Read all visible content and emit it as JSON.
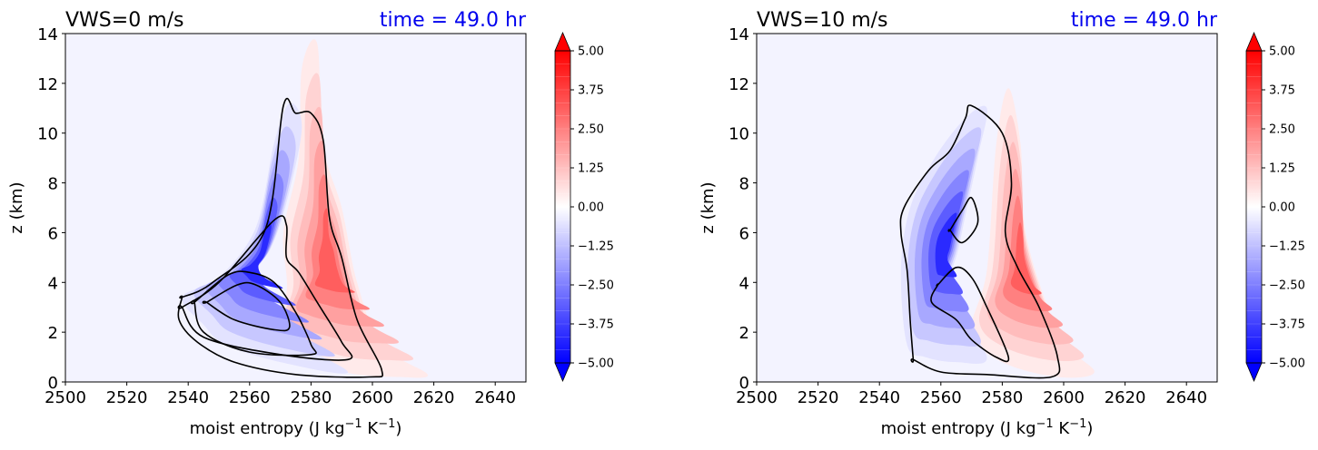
{
  "chart_data": [
    {
      "type": "contour",
      "title": "VWS=0 m/s",
      "time_label": "time = 49.0 hr",
      "xlabel": "moist entropy (J kg$^{-1}$ K$^{-1}$)",
      "xlabel_parts": [
        "moist entropy (J kg",
        "−1",
        " K",
        "−1",
        ")"
      ],
      "ylabel": "z (km)",
      "xlim": [
        2500,
        2650
      ],
      "ylim": [
        0,
        14
      ],
      "xticks": [
        "2500",
        "2520",
        "2540",
        "2560",
        "2580",
        "2600",
        "2620",
        "2640"
      ],
      "yticks": [
        "0",
        "2",
        "4",
        "6",
        "8",
        "10",
        "12",
        "14"
      ],
      "colorbar": {
        "range": [
          -5.0,
          5.0
        ],
        "extend": "both",
        "colormap": "bwr",
        "ticks": [
          "5.00",
          "3.75",
          "2.50",
          "1.25",
          "0.00",
          "−1.25",
          "−2.50",
          "−3.75",
          "−5.00"
        ]
      },
      "negative_lobe": [
        [
          2545,
          2.3
        ],
        [
          2538,
          3.4
        ],
        [
          2550,
          4.2
        ],
        [
          2562,
          6.2
        ],
        [
          2568,
          9.6
        ],
        [
          2573,
          11.2
        ],
        [
          2577,
          10.2
        ],
        [
          2572,
          7.2
        ],
        [
          2567,
          5.4
        ],
        [
          2560,
          3.9
        ],
        [
          2567,
          2.2
        ],
        [
          2592,
          0.4
        ],
        [
          2570,
          0.8
        ],
        [
          2552,
          1.5
        ]
      ],
      "positive_lobe": [
        [
          2566,
          1.6
        ],
        [
          2572,
          3.6
        ],
        [
          2571,
          6.0
        ],
        [
          2576,
          9.0
        ],
        [
          2577,
          12.6
        ],
        [
          2582,
          13.6
        ],
        [
          2584,
          9.5
        ],
        [
          2590,
          7.0
        ],
        [
          2595,
          4.0
        ],
        [
          2603,
          1.5
        ],
        [
          2618,
          0.3
        ],
        [
          2608,
          0.2
        ],
        [
          2595,
          0.3
        ],
        [
          2585,
          0.6
        ],
        [
          2574,
          1.0
        ]
      ],
      "contours": [
        [
          [
            2538,
            3.4
          ],
          [
            2548,
            4.0
          ],
          [
            2565,
            6.1
          ],
          [
            2571,
            11.1
          ],
          [
            2575,
            10.8
          ],
          [
            2580,
            10.8
          ],
          [
            2584,
            9.7
          ],
          [
            2586,
            6.6
          ],
          [
            2590,
            5.0
          ],
          [
            2595,
            2.5
          ],
          [
            2603,
            0.5
          ],
          [
            2599,
            0.2
          ],
          [
            2575,
            0.3
          ],
          [
            2555,
            0.8
          ],
          [
            2543,
            1.6
          ],
          [
            2537,
            2.5
          ],
          [
            2538,
            3.4
          ]
        ],
        [
          [
            2538,
            3.0
          ],
          [
            2550,
            4.0
          ],
          [
            2568,
            6.5
          ],
          [
            2572,
            6.3
          ],
          [
            2572,
            5.0
          ],
          [
            2576,
            4.4
          ],
          [
            2582,
            3.2
          ],
          [
            2590,
            1.6
          ],
          [
            2592,
            0.9
          ],
          [
            2570,
            1.1
          ],
          [
            2545,
            1.8
          ],
          [
            2538,
            3.0
          ]
        ],
        [
          [
            2542,
            3.2
          ],
          [
            2553,
            4.3
          ],
          [
            2560,
            4.4
          ],
          [
            2568,
            4.0
          ],
          [
            2575,
            2.8
          ],
          [
            2580,
            1.5
          ],
          [
            2580,
            1.1
          ],
          [
            2560,
            1.2
          ],
          [
            2545,
            2.0
          ],
          [
            2542,
            3.2
          ]
        ],
        [
          [
            2546,
            3.2
          ],
          [
            2556,
            3.9
          ],
          [
            2562,
            3.9
          ],
          [
            2570,
            3.2
          ],
          [
            2573,
            2.2
          ],
          [
            2568,
            2.1
          ],
          [
            2555,
            2.5
          ],
          [
            2546,
            3.2
          ]
        ]
      ]
    },
    {
      "type": "contour",
      "title": "VWS=10 m/s",
      "time_label": "time = 49.0 hr",
      "xlabel": "moist entropy (J kg$^{-1}$ K$^{-1}$)",
      "xlabel_parts": [
        "moist entropy (J kg",
        "−1",
        " K",
        "−1",
        ")"
      ],
      "ylabel": "z (km)",
      "xlim": [
        2500,
        2650
      ],
      "ylim": [
        0,
        14
      ],
      "xticks": [
        "2500",
        "2520",
        "2540",
        "2560",
        "2580",
        "2600",
        "2620",
        "2640"
      ],
      "yticks": [
        "0",
        "2",
        "4",
        "6",
        "8",
        "10",
        "12",
        "14"
      ],
      "colorbar": {
        "range": [
          -5.0,
          5.0
        ],
        "extend": "both",
        "colormap": "bwr",
        "ticks": [
          "5.00",
          "3.75",
          "2.50",
          "1.25",
          "0.00",
          "−1.25",
          "−2.50",
          "−3.75",
          "−5.00"
        ]
      },
      "negative_lobe": [
        [
          2549,
          1.5
        ],
        [
          2547,
          4.5
        ],
        [
          2550,
          7.0
        ],
        [
          2558,
          9.0
        ],
        [
          2568,
          10.6
        ],
        [
          2575,
          11.0
        ],
        [
          2572,
          9.0
        ],
        [
          2566,
          5.5
        ],
        [
          2563,
          3.5
        ],
        [
          2575,
          1.0
        ],
        [
          2565,
          0.8
        ],
        [
          2555,
          1.0
        ]
      ],
      "positive_lobe": [
        [
          2570,
          2.0
        ],
        [
          2575,
          4.5
        ],
        [
          2578,
          9.5
        ],
        [
          2582,
          11.8
        ],
        [
          2586,
          9.5
        ],
        [
          2587,
          6.5
        ],
        [
          2592,
          4.0
        ],
        [
          2600,
          1.6
        ],
        [
          2610,
          0.4
        ],
        [
          2598,
          0.2
        ],
        [
          2580,
          0.8
        ]
      ],
      "contours": [
        [
          [
            2551,
            0.9
          ],
          [
            2550,
            2.5
          ],
          [
            2549,
            4.5
          ],
          [
            2547,
            6.0
          ],
          [
            2548,
            7.0
          ],
          [
            2556,
            8.5
          ],
          [
            2563,
            9.3
          ],
          [
            2568,
            10.6
          ],
          [
            2570,
            11.1
          ],
          [
            2580,
            10.0
          ],
          [
            2583,
            8.0
          ],
          [
            2581,
            6.0
          ],
          [
            2585,
            4.6
          ],
          [
            2592,
            3.0
          ],
          [
            2598,
            1.0
          ],
          [
            2596,
            0.2
          ],
          [
            2575,
            0.3
          ],
          [
            2560,
            0.4
          ],
          [
            2551,
            0.9
          ]
        ],
        [
          [
            2559,
            3.9
          ],
          [
            2565,
            4.6
          ],
          [
            2570,
            4.2
          ],
          [
            2575,
            3.0
          ],
          [
            2582,
            1.0
          ],
          [
            2578,
            1.0
          ],
          [
            2570,
            1.7
          ],
          [
            2565,
            2.5
          ],
          [
            2557,
            3.2
          ],
          [
            2559,
            3.9
          ]
        ],
        [
          [
            2563,
            6.1
          ],
          [
            2567,
            6.9
          ],
          [
            2570,
            7.4
          ],
          [
            2572,
            6.4
          ],
          [
            2567,
            5.6
          ],
          [
            2563,
            6.1
          ]
        ]
      ]
    }
  ]
}
